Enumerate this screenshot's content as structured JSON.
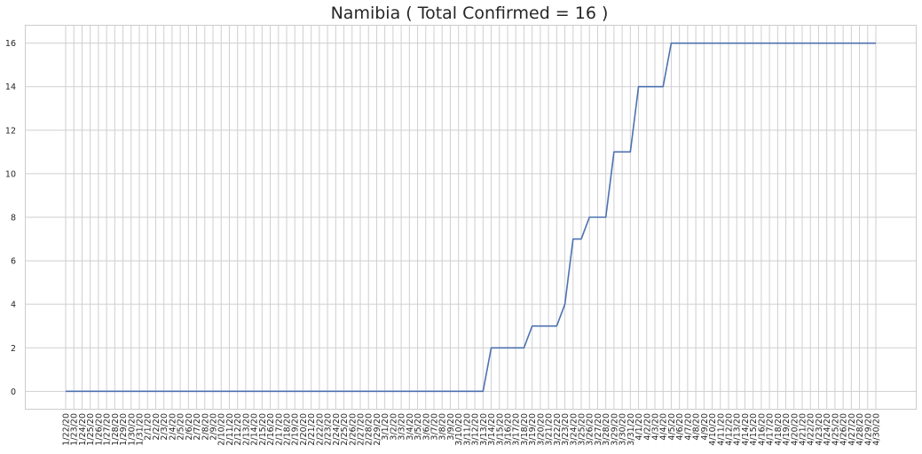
{
  "chart_data": {
    "type": "line",
    "title": "Namibia ( Total Confirmed = 16 )",
    "xlabel": "",
    "ylabel": "",
    "ylim": [
      -0.8,
      16.8
    ],
    "yticks": [
      0,
      2,
      4,
      6,
      8,
      10,
      12,
      14,
      16
    ],
    "grid": true,
    "line_color": "#4c72b0",
    "categories": [
      "1/22/20",
      "1/23/20",
      "1/24/20",
      "1/25/20",
      "1/26/20",
      "1/27/20",
      "1/28/20",
      "1/29/20",
      "1/30/20",
      "1/31/20",
      "2/1/20",
      "2/2/20",
      "2/3/20",
      "2/4/20",
      "2/5/20",
      "2/6/20",
      "2/7/20",
      "2/8/20",
      "2/9/20",
      "2/10/20",
      "2/11/20",
      "2/12/20",
      "2/13/20",
      "2/14/20",
      "2/15/20",
      "2/16/20",
      "2/17/20",
      "2/18/20",
      "2/19/20",
      "2/20/20",
      "2/21/20",
      "2/22/20",
      "2/23/20",
      "2/24/20",
      "2/25/20",
      "2/26/20",
      "2/27/20",
      "2/28/20",
      "2/29/20",
      "3/1/20",
      "3/2/20",
      "3/3/20",
      "3/4/20",
      "3/5/20",
      "3/6/20",
      "3/7/20",
      "3/8/20",
      "3/9/20",
      "3/10/20",
      "3/11/20",
      "3/12/20",
      "3/13/20",
      "3/14/20",
      "3/15/20",
      "3/16/20",
      "3/17/20",
      "3/18/20",
      "3/19/20",
      "3/20/20",
      "3/21/20",
      "3/22/20",
      "3/23/20",
      "3/24/20",
      "3/25/20",
      "3/26/20",
      "3/27/20",
      "3/28/20",
      "3/29/20",
      "3/30/20",
      "3/31/20",
      "4/1/20",
      "4/2/20",
      "4/3/20",
      "4/4/20",
      "4/5/20",
      "4/6/20",
      "4/7/20",
      "4/8/20",
      "4/9/20",
      "4/10/20",
      "4/11/20",
      "4/12/20",
      "4/13/20",
      "4/14/20",
      "4/15/20",
      "4/16/20",
      "4/17/20",
      "4/18/20",
      "4/19/20",
      "4/20/20",
      "4/21/20",
      "4/22/20",
      "4/23/20",
      "4/24/20",
      "4/25/20",
      "4/26/20",
      "4/27/20",
      "4/28/20",
      "4/29/20",
      "4/30/20"
    ],
    "values": [
      0,
      0,
      0,
      0,
      0,
      0,
      0,
      0,
      0,
      0,
      0,
      0,
      0,
      0,
      0,
      0,
      0,
      0,
      0,
      0,
      0,
      0,
      0,
      0,
      0,
      0,
      0,
      0,
      0,
      0,
      0,
      0,
      0,
      0,
      0,
      0,
      0,
      0,
      0,
      0,
      0,
      0,
      0,
      0,
      0,
      0,
      0,
      0,
      0,
      0,
      0,
      0,
      2,
      2,
      2,
      2,
      2,
      3,
      3,
      3,
      3,
      4,
      7,
      7,
      8,
      8,
      8,
      11,
      11,
      11,
      14,
      14,
      14,
      14,
      16,
      16,
      16,
      16,
      16,
      16,
      16,
      16,
      16,
      16,
      16,
      16,
      16,
      16,
      16,
      16,
      16,
      16,
      16,
      16,
      16,
      16,
      16,
      16,
      16,
      16
    ]
  }
}
